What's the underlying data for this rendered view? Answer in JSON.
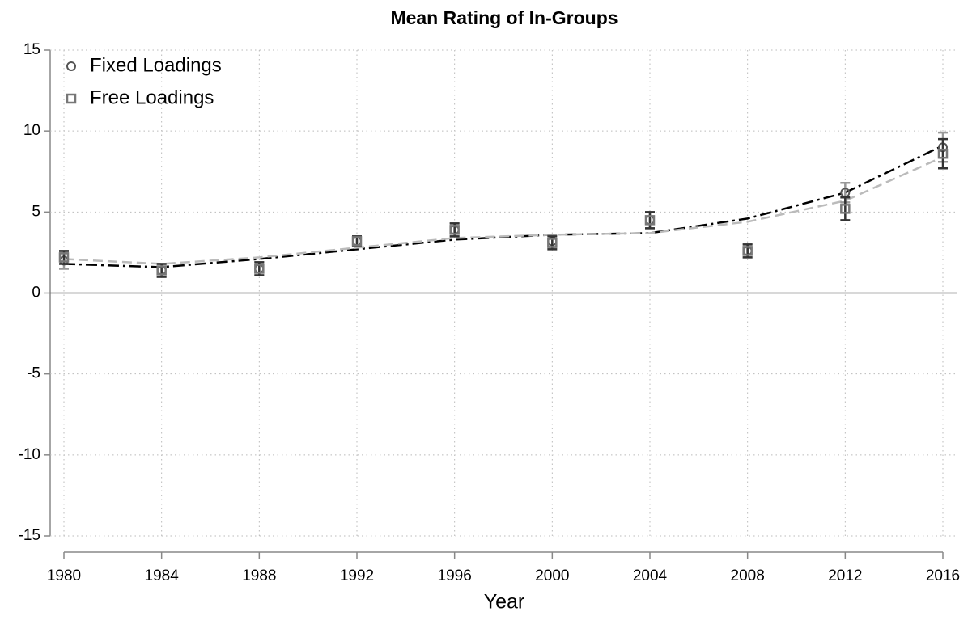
{
  "chart_data": {
    "type": "line",
    "title": "Mean Rating of In-Groups",
    "x_label": "Year",
    "x": [
      1980,
      1984,
      1988,
      1992,
      1996,
      2000,
      2004,
      2008,
      2012,
      2016
    ],
    "series": [
      {
        "name": "Fixed Loadings",
        "color": "#555555",
        "marker": "circle",
        "line_color": "#000000",
        "values": [
          2.0,
          1.4,
          1.5,
          3.2,
          3.9,
          3.2,
          4.5,
          2.6,
          6.2,
          9.0
        ],
        "errors": [
          0.5,
          0.4,
          0.4,
          0.3,
          0.4,
          0.4,
          0.5,
          0.4,
          0.6,
          0.9
        ],
        "fit": [
          1.8,
          1.6,
          2.1,
          2.7,
          3.3,
          3.6,
          3.7,
          4.6,
          6.2,
          9.1
        ]
      },
      {
        "name": "Free Loadings",
        "color": "#777777",
        "marker": "square",
        "line_color": "#bbbbbb",
        "values": [
          2.2,
          1.4,
          1.5,
          3.2,
          3.9,
          3.1,
          4.5,
          2.6,
          5.2,
          8.6
        ],
        "errors": [
          0.4,
          0.4,
          0.4,
          0.3,
          0.4,
          0.4,
          0.5,
          0.4,
          0.7,
          0.9
        ],
        "fit": [
          2.1,
          1.8,
          2.2,
          2.8,
          3.4,
          3.6,
          3.7,
          4.4,
          5.7,
          8.4
        ]
      }
    ],
    "xlim": [
      1980,
      2016
    ],
    "xticks": [
      1980,
      1984,
      1988,
      1992,
      1996,
      2000,
      2004,
      2008,
      2012,
      2016
    ],
    "ylim": [
      -15,
      15
    ],
    "yticks": [
      -15,
      -10,
      -5,
      0,
      5,
      10,
      15
    ],
    "grid": true,
    "legend": "top-left"
  }
}
